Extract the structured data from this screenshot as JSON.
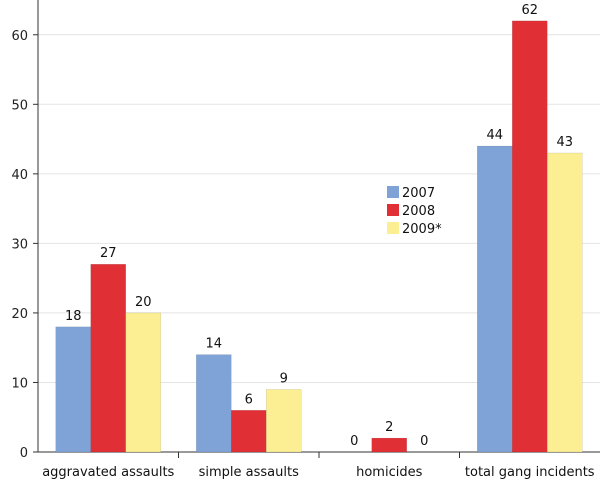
{
  "chart_data": {
    "type": "bar",
    "categories": [
      "aggravated assaults",
      "simple assaults",
      "homicides",
      "total gang incidents"
    ],
    "series": [
      {
        "name": "2007",
        "values": [
          18,
          14,
          0,
          44
        ],
        "color": "#7fa3d6"
      },
      {
        "name": "2008",
        "values": [
          27,
          6,
          2,
          62
        ],
        "color": "#e03036"
      },
      {
        "name": "2009*",
        "values": [
          20,
          9,
          0,
          43
        ],
        "color": "#fbee93"
      }
    ],
    "title": "",
    "xlabel": "",
    "ylabel": "",
    "ylim": [
      0,
      65
    ],
    "yticks": [
      0,
      10,
      20,
      30,
      40,
      50,
      60
    ],
    "grid": true,
    "legend_position": "center-right",
    "data_labels": true
  }
}
